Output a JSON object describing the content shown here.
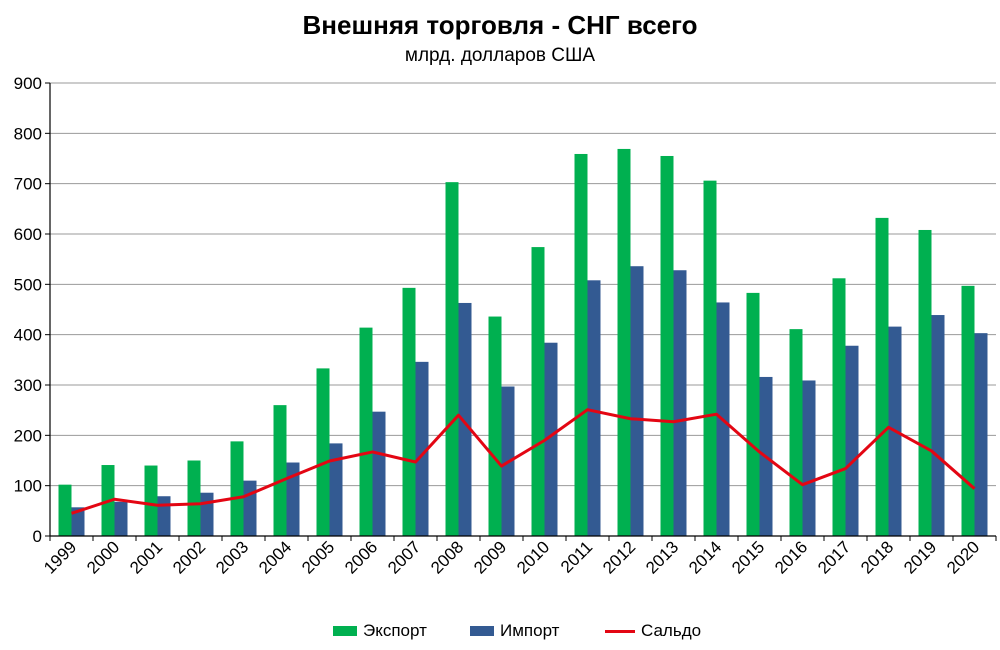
{
  "chart_data": {
    "type": "bar",
    "title": "Внешняя торговля - СНГ всего",
    "subtitle": "млрд. долларов США",
    "categories": [
      "1999",
      "2000",
      "2001",
      "2002",
      "2003",
      "2004",
      "2005",
      "2006",
      "2007",
      "2008",
      "2009",
      "2010",
      "2011",
      "2012",
      "2013",
      "2014",
      "2015",
      "2016",
      "2017",
      "2018",
      "2019",
      "2020"
    ],
    "ylim": [
      0,
      900
    ],
    "yticks": [
      "0",
      "100",
      "200",
      "300",
      "400",
      "500",
      "600",
      "700",
      "800",
      "900"
    ],
    "grid": true,
    "legend_position": "bottom",
    "series": [
      {
        "name": "Экспорт",
        "type": "bar",
        "color": "#00b050",
        "values": [
          102,
          141,
          140,
          150,
          188,
          260,
          333,
          414,
          493,
          703,
          436,
          574,
          759,
          769,
          755,
          706,
          483,
          411,
          512,
          632,
          608,
          497
        ]
      },
      {
        "name": "Импорт",
        "type": "bar",
        "color": "#335a92",
        "values": [
          57,
          68,
          79,
          86,
          110,
          146,
          184,
          247,
          346,
          463,
          297,
          384,
          508,
          536,
          528,
          464,
          316,
          309,
          378,
          416,
          439,
          403
        ]
      },
      {
        "name": "Сальдо",
        "type": "line",
        "color": "#e30613",
        "values": [
          45,
          73,
          61,
          64,
          78,
          114,
          149,
          167,
          147,
          240,
          139,
          190,
          251,
          233,
          227,
          242,
          167,
          102,
          134,
          216,
          169,
          94
        ]
      }
    ]
  }
}
